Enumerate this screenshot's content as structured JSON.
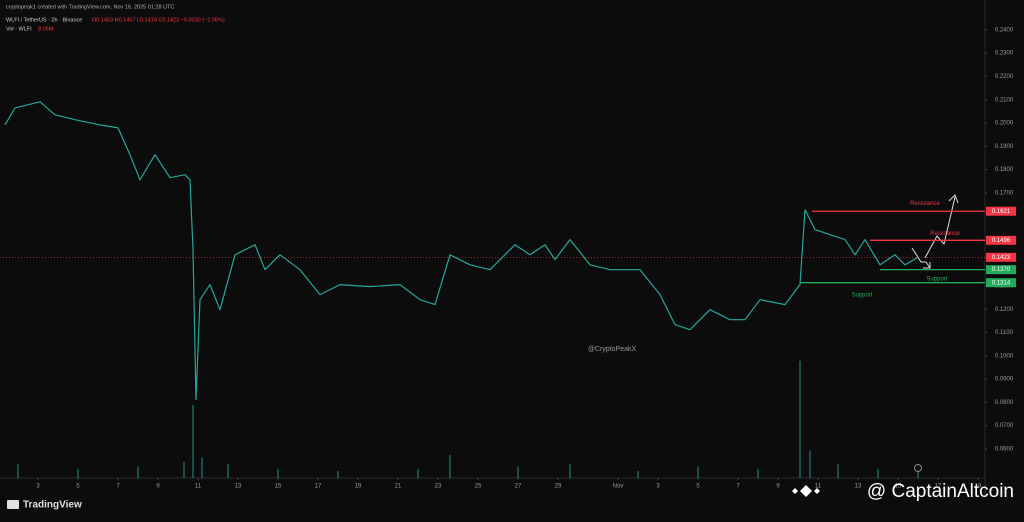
{
  "header": {
    "credit": "cryptopeak1 created with TradingView.com, Nov 16, 2025 01:28 UTC",
    "symbol": "WLFI / TetherUS · 2h · Binance",
    "ohlc": "O0.1453 H0.1457 L0.1418 C0.1423 −0.0030 (−2.06%)",
    "volume_label": "Vol · WLFI",
    "volume_value": "8.06M"
  },
  "chart_data": {
    "type": "line",
    "x": [
      1.35,
      1.85,
      3.1,
      3.85,
      4.85,
      6.1,
      7.0,
      7.6,
      8.1,
      8.85,
      9.6,
      10.35,
      10.6,
      10.75,
      10.9,
      11.1,
      11.6,
      12.1,
      12.85,
      13.85,
      14.35,
      15.1,
      16.1,
      17.1,
      18.1,
      19.6,
      21.1,
      22.1,
      22.85,
      23.6,
      24.6,
      25.6,
      26.85,
      27.6,
      28.35,
      28.85,
      29.6,
      30.6,
      31.6,
      33.1,
      34.1,
      34.85,
      35.6,
      36.6,
      37.6,
      38.35,
      39.1,
      40.35,
      41.1,
      41.35,
      41.85,
      42.6,
      43.35,
      43.85,
      44.35,
      45.1,
      45.85,
      46.35,
      47.0
    ],
    "series": [
      {
        "color": "#26a69a",
        "values": [
          0.1992,
          0.2065,
          0.2091,
          0.2035,
          0.2014,
          0.1992,
          0.1979,
          0.1864,
          0.1756,
          0.1864,
          0.1765,
          0.1778,
          0.1756,
          0.1456,
          0.0812,
          0.1241,
          0.1306,
          0.1198,
          0.1434,
          0.1477,
          0.137,
          0.1434,
          0.137,
          0.1263,
          0.1306,
          0.1297,
          0.1306,
          0.1241,
          0.122,
          0.1434,
          0.1391,
          0.137,
          0.1477,
          0.1434,
          0.1477,
          0.1413,
          0.1499,
          0.1391,
          0.137,
          0.137,
          0.1263,
          0.1134,
          0.1112,
          0.1198,
          0.1155,
          0.1155,
          0.1241,
          0.122,
          0.1306,
          0.1627,
          0.1542,
          0.152,
          0.1499,
          0.1434,
          0.1499,
          0.1391,
          0.1434,
          0.1391,
          0.1423
        ]
      }
    ],
    "xlim": [
      1.1,
      50.35
    ],
    "ylim": [
      0.0475,
      0.2494
    ],
    "grid": false,
    "xticks": [
      3,
      5,
      7,
      9,
      11,
      13,
      15,
      17,
      19,
      21,
      23,
      25,
      27,
      29,
      {
        "value": 32,
        "label": "Nov"
      },
      {
        "value": 34,
        "label": "3"
      },
      {
        "value": 36,
        "label": "5"
      },
      {
        "value": 38,
        "label": "7"
      },
      {
        "value": 40,
        "label": "9"
      },
      {
        "value": 42,
        "label": "11"
      },
      {
        "value": 44,
        "label": "13"
      },
      {
        "value": 46,
        "label": "15"
      },
      {
        "value": 48,
        "label": "17"
      },
      {
        "value": 50,
        "label": "19"
      }
    ],
    "yticks": [
      {
        "value": 0.24,
        "label": "0.2400"
      },
      {
        "value": 0.23,
        "label": "0.2300"
      },
      {
        "value": 0.22,
        "label": "0.2200"
      },
      {
        "value": 0.21,
        "label": "0.2100"
      },
      {
        "value": 0.2,
        "label": "0.2000"
      },
      {
        "value": 0.19,
        "label": "0.1900"
      },
      {
        "value": 0.18,
        "label": "0.1800"
      },
      {
        "value": 0.17,
        "label": "0.1700"
      },
      {
        "value": 0.13,
        "label": "0.1300"
      },
      {
        "value": 0.12,
        "label": "0.1200"
      },
      {
        "value": 0.11,
        "label": "0.1100"
      },
      {
        "value": 0.1,
        "label": "0.1000"
      },
      {
        "value": 0.09,
        "label": "0.0900"
      },
      {
        "value": 0.08,
        "label": "0.0800"
      },
      {
        "value": 0.07,
        "label": "0.0700"
      },
      {
        "value": 0.06,
        "label": "0.0600"
      }
    ],
    "volume": {
      "color": "#26a69a",
      "ylim": [
        0,
        60
      ],
      "x": [
        2,
        5,
        8,
        10.3,
        10.75,
        11.2,
        12.5,
        15,
        18,
        22,
        23.6,
        27,
        29.6,
        33,
        36,
        39,
        41.1,
        41.6,
        43,
        45,
        47
      ],
      "values": [
        6,
        4,
        5,
        7,
        31.7,
        9,
        6,
        4,
        3,
        4,
        10,
        5,
        6,
        3,
        5,
        4,
        51,
        12,
        6,
        4,
        3
      ]
    },
    "levels": [
      {
        "value": 0.1621,
        "start": 41.7,
        "color": "#f23645"
      },
      {
        "value": 0.1496,
        "start": 44.6,
        "color": "#f23645"
      },
      {
        "value": 0.137,
        "label": "0.1370",
        "start": 45.1,
        "color": "#22ab5a"
      },
      {
        "value": 0.1314,
        "start": 41.1,
        "color": "#22ab5a"
      }
    ],
    "last_price": {
      "value": 0.1423,
      "color": "#f23645"
    },
    "annotations": [
      {
        "text": "Resistance",
        "x": 47.35,
        "y": 0.1654,
        "color": "#f23645"
      },
      {
        "text": "Resistance",
        "x": 48.35,
        "y": 0.1525,
        "color": "#f23645"
      },
      {
        "text": "Support",
        "x": 47.95,
        "y": 0.1331,
        "color": "#22ab5a"
      },
      {
        "text": "Support",
        "x": 44.2,
        "y": 0.1262,
        "color": "#22ab5a"
      }
    ],
    "watermark": "@CryptoPeakX"
  },
  "footer": {
    "logo": "TradingView",
    "credit": "@ CaptainAltcoin"
  }
}
